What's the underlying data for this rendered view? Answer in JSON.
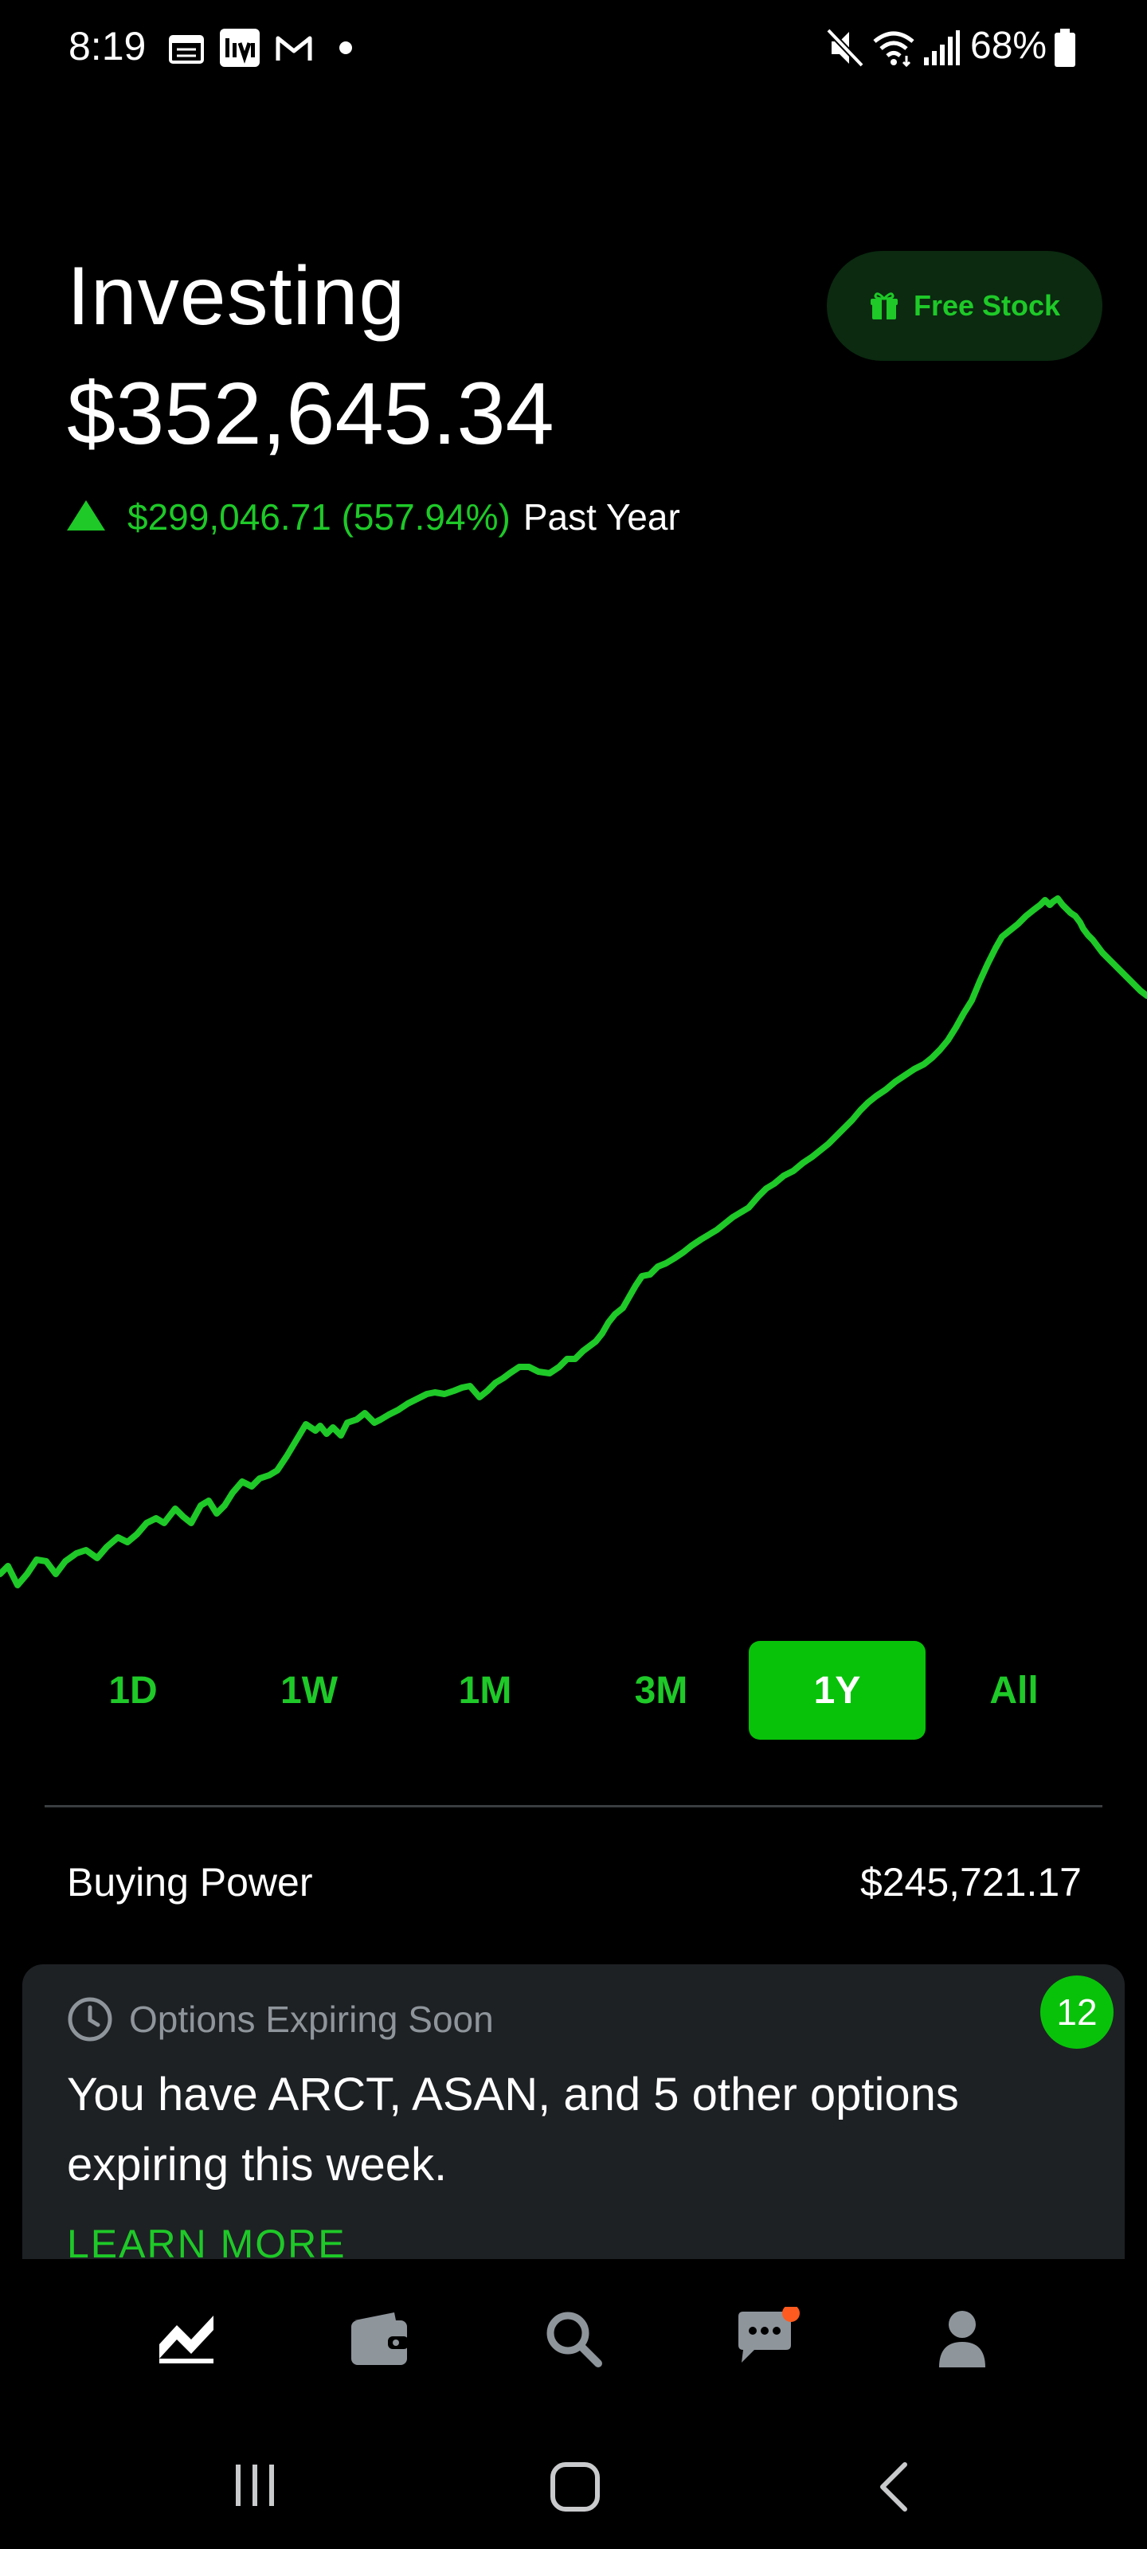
{
  "status_bar": {
    "time": "8:19",
    "battery": "68%",
    "notification_icons": [
      "calendar-icon",
      "investing-app-icon",
      "gmail-icon",
      "dot-icon"
    ],
    "system_icons": [
      "mute-icon",
      "wifi-icon",
      "signal-icon",
      "battery-icon"
    ]
  },
  "header": {
    "title": "Investing",
    "portfolio_value": "$352,645.34",
    "change_value": "$299,046.71 (557.94%)",
    "change_period": "Past Year",
    "free_stock_label": "Free Stock"
  },
  "colors": {
    "accent": "#1ec928",
    "accent_active": "#08c20a",
    "background": "#000000",
    "card": "#1e2124",
    "muted_text": "#8e959b"
  },
  "range_tabs": [
    {
      "label": "1D",
      "active": false
    },
    {
      "label": "1W",
      "active": false
    },
    {
      "label": "1M",
      "active": false
    },
    {
      "label": "3M",
      "active": false
    },
    {
      "label": "1Y",
      "active": true
    },
    {
      "label": "All",
      "active": false
    }
  ],
  "buying_power": {
    "label": "Buying Power",
    "value": "$245,721.17"
  },
  "options_card": {
    "header": "Options Expiring Soon",
    "body": "You have ARCT, ASAN, and 5 other options expiring this week.",
    "link": "LEARN MORE",
    "badge_count": "12"
  },
  "bottom_nav": [
    {
      "name": "investing-chart-icon",
      "active": true
    },
    {
      "name": "wallet-icon",
      "active": false
    },
    {
      "name": "search-icon",
      "active": false
    },
    {
      "name": "messages-icon",
      "active": false,
      "notification_dot": true
    },
    {
      "name": "account-icon",
      "active": false
    }
  ],
  "system_nav": [
    "recent-apps-icon",
    "home-icon",
    "back-icon"
  ]
}
